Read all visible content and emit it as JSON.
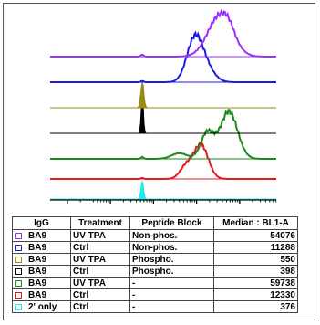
{
  "chart_data": {
    "type": "histogram-overlay",
    "x_scale": "log",
    "stack_order_top_to_bottom": [
      "BA9 UV TPA Non-phos.",
      "BA9 Ctrl Non-phos.",
      "BA9 UV TPA Phospho.",
      "BA9 Ctrl Phospho.",
      "BA9 UV TPA -",
      "BA9 Ctrl -",
      "2' only Ctrl"
    ],
    "legend": {
      "columns": [
        "IgG",
        "Treatment",
        "Peptide Block",
        "Median : BL1-A"
      ],
      "rows": [
        {
          "igg": "BA9",
          "treatment": "UV TPA",
          "peptide": "Non-phos.",
          "median": "54076",
          "color": "#9b30ff"
        },
        {
          "igg": "BA9",
          "treatment": "Ctrl",
          "peptide": "Non-phos.",
          "median": "11288",
          "color": "#1c1cdc"
        },
        {
          "igg": "BA9",
          "treatment": "UV TPA",
          "peptide": "Phospho.",
          "median": "550",
          "color": "#9a8a14"
        },
        {
          "igg": "BA9",
          "treatment": "Ctrl",
          "peptide": "Phospho.",
          "median": "398",
          "color": "#000000"
        },
        {
          "igg": "BA9",
          "treatment": "UV TPA",
          "peptide": "-",
          "median": "59738",
          "color": "#1a8a1a"
        },
        {
          "igg": "BA9",
          "treatment": "Ctrl",
          "peptide": "-",
          "median": "12330",
          "color": "#e01c1c"
        },
        {
          "igg": "2' only",
          "treatment": "Ctrl",
          "peptide": "-",
          "median": "376",
          "color": "#22e8f0"
        }
      ]
    },
    "legend_placement": "bottom"
  }
}
